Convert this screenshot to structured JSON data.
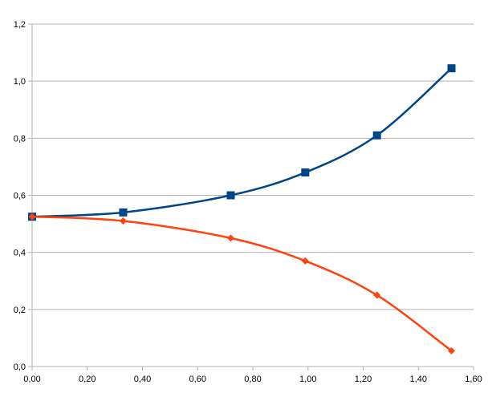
{
  "chart_data": {
    "type": "line",
    "title": "",
    "xlabel": "",
    "ylabel": "",
    "xlim": [
      0,
      1.6
    ],
    "ylim": [
      0,
      1.2
    ],
    "x_ticks": [
      0.0,
      0.2,
      0.4,
      0.6,
      0.8,
      1.0,
      1.2,
      1.4,
      1.6
    ],
    "x_tick_labels": [
      "0,00",
      "0,20",
      "0,40",
      "0,60",
      "0,80",
      "1,00",
      "1,20",
      "1,40",
      "1,60"
    ],
    "y_ticks": [
      0.0,
      0.2,
      0.4,
      0.6,
      0.8,
      1.0,
      1.2
    ],
    "y_tick_labels": [
      "0,0",
      "0,2",
      "0,4",
      "0,6",
      "0,8",
      "1,0",
      "1,2"
    ],
    "grid": {
      "horizontal": true,
      "vertical": false
    },
    "legend": "none",
    "series": [
      {
        "marker": "square",
        "color": "#004586",
        "smooth": true,
        "points": [
          {
            "x": 0.0,
            "y": 0.525
          },
          {
            "x": 0.33,
            "y": 0.54
          },
          {
            "x": 0.72,
            "y": 0.6
          },
          {
            "x": 0.99,
            "y": 0.68
          },
          {
            "x": 1.25,
            "y": 0.81
          },
          {
            "x": 1.52,
            "y": 1.045
          }
        ]
      },
      {
        "marker": "diamond",
        "color": "#ff420e",
        "smooth": true,
        "points": [
          {
            "x": 0.0,
            "y": 0.525
          },
          {
            "x": 0.33,
            "y": 0.51
          },
          {
            "x": 0.72,
            "y": 0.45
          },
          {
            "x": 0.99,
            "y": 0.37
          },
          {
            "x": 1.25,
            "y": 0.25
          },
          {
            "x": 1.52,
            "y": 0.055
          }
        ]
      }
    ]
  }
}
